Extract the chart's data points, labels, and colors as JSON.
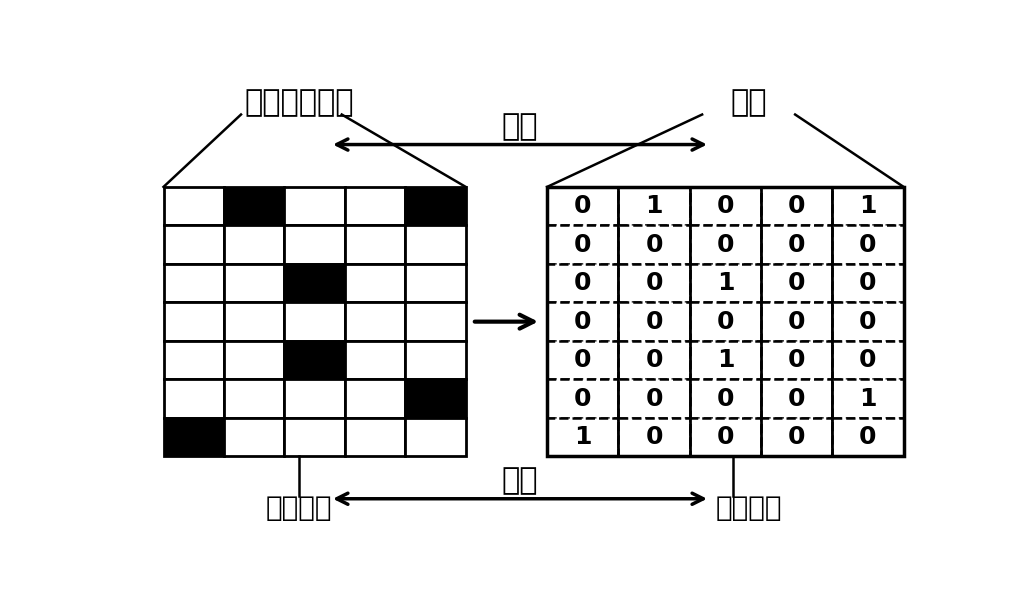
{
  "grid_data": [
    [
      0,
      1,
      0,
      0,
      1
    ],
    [
      0,
      0,
      0,
      0,
      0
    ],
    [
      0,
      0,
      1,
      0,
      0
    ],
    [
      0,
      0,
      0,
      0,
      0
    ],
    [
      0,
      0,
      1,
      0,
      0
    ],
    [
      0,
      0,
      0,
      0,
      1
    ],
    [
      1,
      0,
      0,
      0,
      0
    ]
  ],
  "matrix_data": [
    [
      0,
      1,
      0,
      0,
      1
    ],
    [
      0,
      0,
      0,
      0,
      0
    ],
    [
      0,
      0,
      1,
      0,
      0
    ],
    [
      0,
      0,
      0,
      0,
      0
    ],
    [
      0,
      0,
      1,
      0,
      0
    ],
    [
      0,
      0,
      0,
      0,
      1
    ],
    [
      1,
      0,
      0,
      0,
      0
    ]
  ],
  "label_sampling": "抽样网络方案",
  "label_particle": "粒子",
  "label_mapping_top": "映射",
  "label_mapping_bottom": "映射",
  "label_network_unit": "网络单元",
  "label_particle_dim": "粒子维度",
  "bg_color": "#ffffff",
  "text_color": "#000000",
  "title_fontsize": 22,
  "label_fontsize": 20,
  "cell_fontsize": 18
}
